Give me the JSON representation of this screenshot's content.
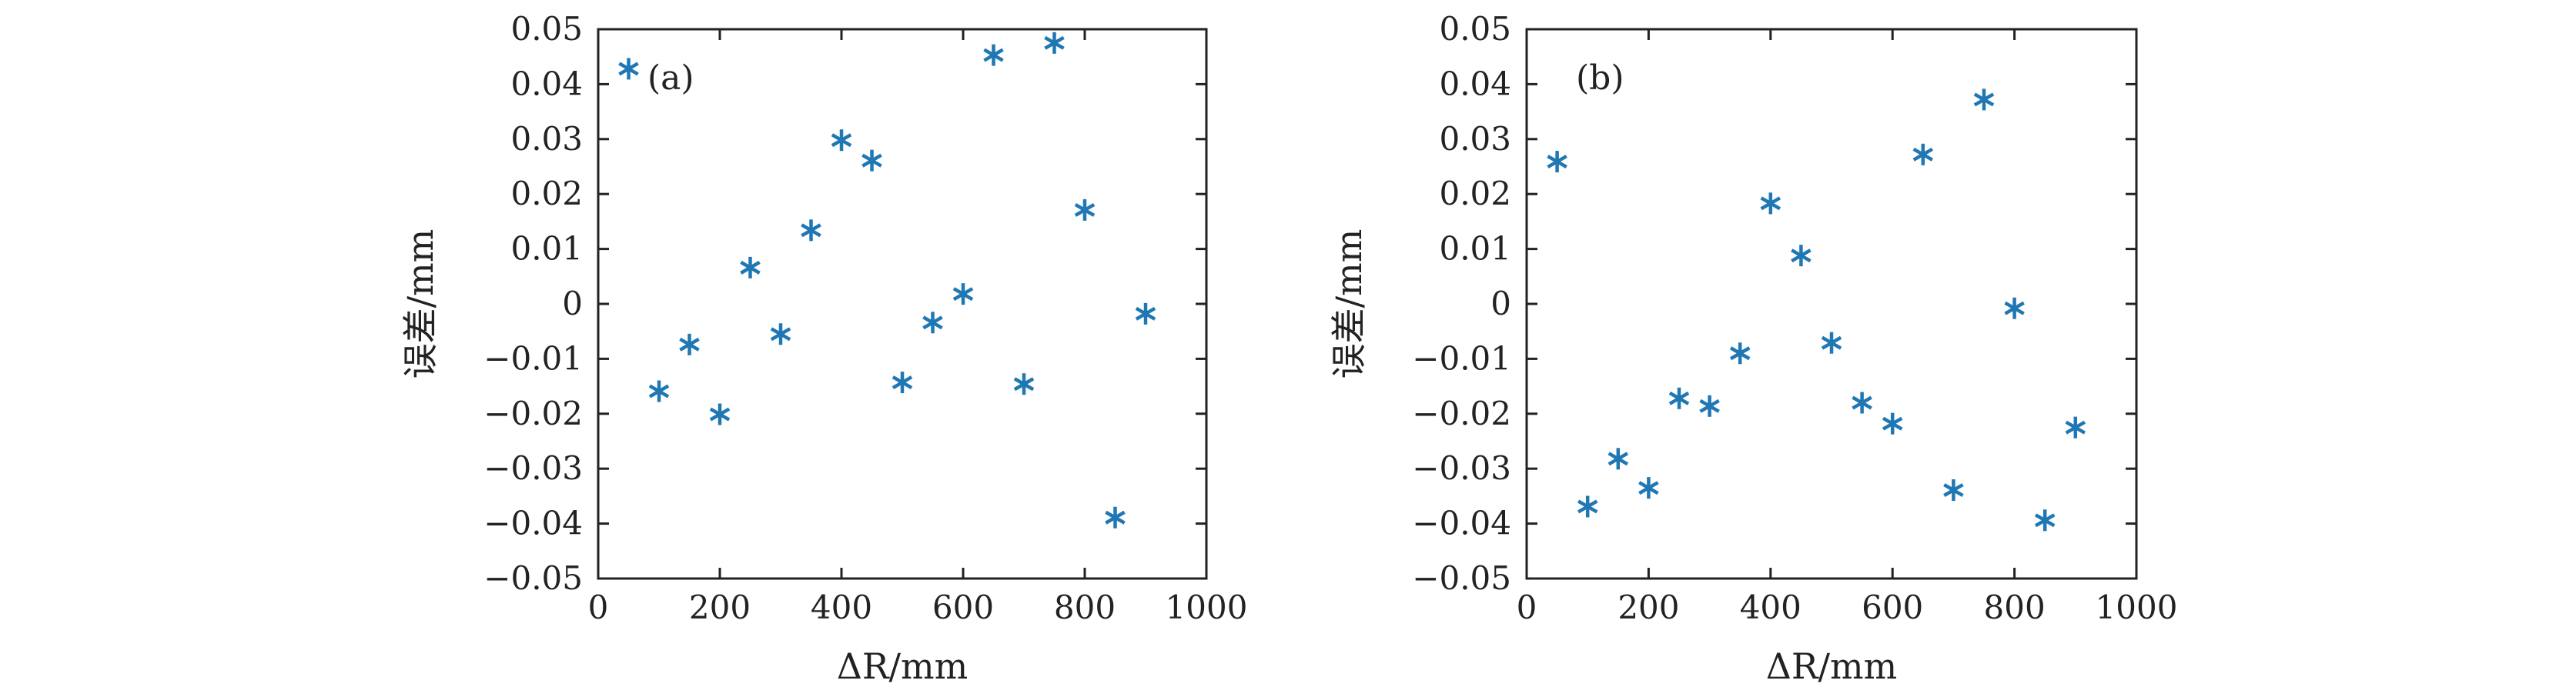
{
  "chart_data": [
    {
      "type": "scatter",
      "panel_label": "(a)",
      "xlabel": "ΔR/mm",
      "ylabel": "误差/mm",
      "xlim": [
        0,
        1000
      ],
      "ylim": [
        -0.05,
        0.05
      ],
      "xticks": [
        "0",
        "200",
        "400",
        "600",
        "800",
        "1000"
      ],
      "yticks": [
        "0.05",
        "0.04",
        "0.03",
        "0.02",
        "0.01",
        "0",
        "−0.01",
        "−0.02",
        "−0.03",
        "−0.04",
        "−0.05"
      ],
      "grid": false,
      "marker": "asterisk",
      "color": "#1f77b4",
      "series": [
        {
          "x": [
            50,
            100,
            150,
            200,
            250,
            300,
            350,
            400,
            450,
            500,
            550,
            600,
            650,
            700,
            750,
            800,
            850,
            900
          ],
          "y": [
            0.0428,
            -0.0159,
            -0.0074,
            -0.0201,
            0.0066,
            -0.0055,
            0.0134,
            0.0298,
            0.0261,
            -0.0143,
            -0.0034,
            0.0018,
            0.0453,
            -0.0146,
            0.0475,
            0.0171,
            -0.0389,
            -0.0018
          ]
        }
      ]
    },
    {
      "type": "scatter",
      "panel_label": "(b)",
      "xlabel": "ΔR/mm",
      "ylabel": "误差/mm",
      "xlim": [
        0,
        1000
      ],
      "ylim": [
        -0.05,
        0.05
      ],
      "xticks": [
        "0",
        "200",
        "400",
        "600",
        "800",
        "1000"
      ],
      "yticks": [
        "0.05",
        "0.04",
        "0.03",
        "0.02",
        "0.01",
        "0",
        "−0.01",
        "−0.02",
        "−0.03",
        "−0.04",
        "−0.05"
      ],
      "grid": false,
      "marker": "asterisk",
      "color": "#1f77b4",
      "series": [
        {
          "x": [
            50,
            100,
            150,
            200,
            250,
            300,
            350,
            400,
            450,
            500,
            550,
            600,
            650,
            700,
            750,
            800,
            850,
            900
          ],
          "y": [
            0.0259,
            -0.0369,
            -0.0282,
            -0.0335,
            -0.0172,
            -0.0186,
            -0.009,
            0.0183,
            0.0088,
            -0.0071,
            -0.018,
            -0.0218,
            0.0272,
            -0.0339,
            0.0372,
            -0.0008,
            -0.0394,
            -0.0225
          ]
        }
      ]
    }
  ]
}
